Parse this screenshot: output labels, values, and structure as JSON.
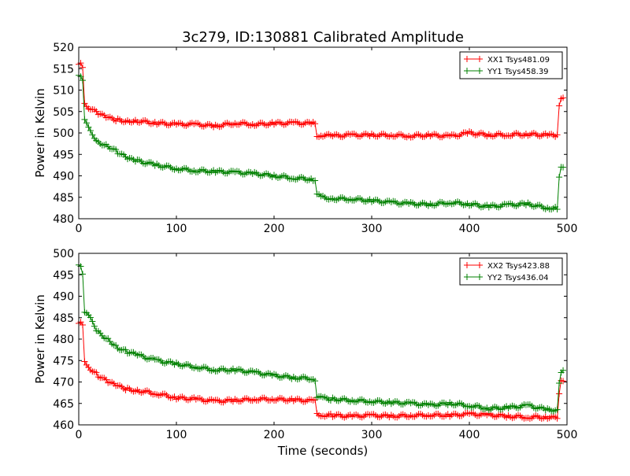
{
  "figure": {
    "title": "3c279, ID:130881 Calibrated Amplitude",
    "xlabel": "Time (seconds)"
  },
  "chart_data": [
    {
      "type": "line",
      "title": "3c279, ID:130881 Calibrated Amplitude",
      "xlabel": "",
      "ylabel": "Power in Kelvin",
      "xlim": [
        0,
        500
      ],
      "ylim": [
        480,
        520
      ],
      "xticks": [
        0,
        100,
        200,
        300,
        400,
        500
      ],
      "yticks": [
        480,
        485,
        490,
        495,
        500,
        505,
        510,
        515,
        520
      ],
      "grid": false,
      "legend": "top-right",
      "marker": "+",
      "series": [
        {
          "name": "XX1 Tsys481.09",
          "color": "#ff0000",
          "x": [
            0,
            2,
            4,
            6,
            10,
            20,
            30,
            40,
            50,
            60,
            80,
            100,
            120,
            140,
            160,
            180,
            200,
            220,
            240,
            242,
            244,
            250,
            260,
            280,
            300,
            320,
            340,
            360,
            380,
            400,
            420,
            440,
            460,
            480,
            490,
            492,
            494,
            496
          ],
          "y": [
            516,
            516,
            515,
            507,
            506,
            504.5,
            503.5,
            503,
            502.8,
            502.8,
            502.3,
            502,
            502,
            501.6,
            502.3,
            502,
            502.2,
            502.3,
            502.2,
            502,
            499.4,
            499.5,
            499.3,
            499.5,
            499.5,
            499.5,
            499.3,
            499.5,
            499.2,
            500,
            499.5,
            499.6,
            499.7,
            499.5,
            499.3,
            506,
            508,
            508.2
          ]
        },
        {
          "name": "YY1 Tsys458.39",
          "color": "#008000",
          "x": [
            0,
            2,
            4,
            6,
            10,
            20,
            30,
            40,
            50,
            60,
            80,
            100,
            120,
            140,
            160,
            180,
            200,
            220,
            240,
            242,
            244,
            250,
            260,
            280,
            300,
            320,
            340,
            360,
            380,
            400,
            420,
            440,
            460,
            480,
            490,
            492,
            494,
            496
          ],
          "y": [
            513.5,
            513.5,
            512.5,
            503,
            501,
            497.8,
            497,
            495.5,
            494,
            493.5,
            492.5,
            491.7,
            491.2,
            491,
            490.8,
            490.5,
            490,
            489.5,
            489.2,
            489,
            485.5,
            485,
            484.7,
            484.6,
            484.2,
            483.8,
            483.5,
            483.3,
            483.8,
            483.4,
            482.8,
            483.2,
            483.4,
            482.5,
            482.5,
            490,
            492,
            492
          ]
        }
      ]
    },
    {
      "type": "line",
      "title": "",
      "xlabel": "Time (seconds)",
      "ylabel": "Power in Kelvin",
      "xlim": [
        0,
        500
      ],
      "ylim": [
        460,
        500
      ],
      "xticks": [
        0,
        100,
        200,
        300,
        400,
        500
      ],
      "yticks": [
        460,
        465,
        470,
        475,
        480,
        485,
        490,
        495,
        500
      ],
      "grid": false,
      "legend": "top-right",
      "marker": "+",
      "series": [
        {
          "name": "XX2 Tsys423.88",
          "color": "#ff0000",
          "x": [
            0,
            2,
            4,
            6,
            10,
            20,
            30,
            40,
            50,
            60,
            80,
            100,
            120,
            140,
            160,
            180,
            200,
            220,
            240,
            242,
            244,
            250,
            260,
            280,
            300,
            320,
            340,
            360,
            380,
            400,
            420,
            440,
            460,
            480,
            490,
            492,
            494,
            496
          ],
          "y": [
            484,
            484,
            483,
            474.5,
            473.5,
            471.5,
            470,
            469,
            468.3,
            468,
            467.3,
            466.3,
            466,
            465.5,
            465.7,
            466,
            466,
            465.8,
            465.6,
            465.5,
            462.5,
            462.3,
            462.2,
            462,
            462.2,
            462,
            462.2,
            462.3,
            462.2,
            462.5,
            462.3,
            462,
            461.8,
            461.8,
            461.6,
            467,
            470,
            470.2
          ]
        },
        {
          "name": "YY2 Tsys436.04",
          "color": "#008000",
          "x": [
            0,
            2,
            4,
            6,
            10,
            20,
            30,
            40,
            50,
            60,
            80,
            100,
            120,
            140,
            160,
            180,
            200,
            220,
            240,
            242,
            244,
            250,
            260,
            280,
            300,
            320,
            340,
            360,
            380,
            400,
            420,
            440,
            460,
            480,
            490,
            492,
            494,
            496
          ],
          "y": [
            497,
            497,
            495.5,
            486.5,
            485.5,
            481.5,
            480,
            478,
            477,
            476.3,
            475,
            474.2,
            473.5,
            472.8,
            472.8,
            472.2,
            471.5,
            471,
            470.8,
            470.6,
            466.5,
            466.2,
            466,
            465.7,
            465.5,
            465.2,
            465,
            464.6,
            465,
            464.5,
            463.8,
            464,
            464.5,
            463.5,
            463.5,
            470,
            472.5,
            472.7
          ]
        }
      ]
    }
  ]
}
